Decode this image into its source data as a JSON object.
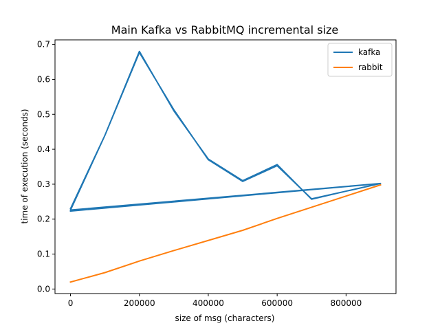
{
  "chart_data": {
    "type": "line",
    "title": "Main Kafka vs RabbitMQ incremental size",
    "xlabel": "size of msg (characters)",
    "ylabel": "time of execution (seconds)",
    "xlim": [
      -45000,
      945000
    ],
    "ylim": [
      -0.013,
      0.713
    ],
    "xticks": [
      0,
      200000,
      400000,
      600000,
      800000
    ],
    "yticks": [
      0.0,
      0.1,
      0.2,
      0.3,
      0.4,
      0.5,
      0.6,
      0.7
    ],
    "xtick_labels": [
      "0",
      "200000",
      "400000",
      "600000",
      "800000"
    ],
    "ytick_labels": [
      "0.0",
      "0.1",
      "0.2",
      "0.3",
      "0.4",
      "0.5",
      "0.6",
      "0.7"
    ],
    "grid": false,
    "legend_position": "top-right",
    "series": [
      {
        "name": "kafka",
        "color": "#1f77b4",
        "x": [
          1,
          100000,
          200000,
          300000,
          400000,
          500000,
          600000,
          700000,
          800000,
          900000,
          1,
          100000,
          200000,
          300000,
          400000,
          500000,
          600000,
          700000,
          800000,
          900000,
          1
        ],
        "y": [
          0.23,
          0.44,
          0.68,
          0.51,
          0.372,
          0.31,
          0.356,
          0.257,
          0.28,
          0.302,
          0.226,
          0.44,
          0.677,
          0.513,
          0.37,
          0.308,
          0.353,
          0.258,
          0.28,
          0.302,
          0.223
        ]
      },
      {
        "name": "rabbit",
        "color": "#ff7f0e",
        "x": [
          1,
          100000,
          200000,
          300000,
          400000,
          500000,
          600000,
          700000,
          800000,
          900000
        ],
        "y": [
          0.02,
          0.047,
          0.08,
          0.11,
          0.139,
          0.168,
          0.202,
          0.234,
          0.266,
          0.298
        ]
      }
    ]
  }
}
